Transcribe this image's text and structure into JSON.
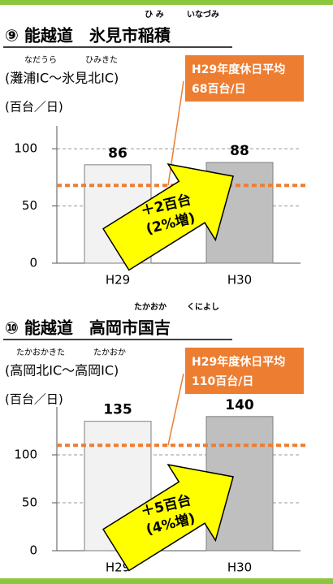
{
  "chart_data": [
    {
      "type": "bar",
      "title": "⑨ 能越道　氷見市稲積",
      "title_ruby": [
        "ひ み",
        "いなづみ"
      ],
      "subtitle": "(灘浦IC〜氷見北IC)",
      "subtitle_ruby": [
        "なだうら",
        "ひみきた"
      ],
      "unit_label": "(百台／日)",
      "categories": [
        "H29",
        "H30"
      ],
      "values": [
        86,
        88
      ],
      "colors": [
        "#f2f2f2",
        "#bfbfbf"
      ],
      "ylim": [
        0,
        120
      ],
      "yticks": [
        0,
        50,
        100
      ],
      "grid": true,
      "reference": {
        "title": "H29年度休日平均",
        "value": 68,
        "label": "68百台/日",
        "color": "#ed7d31"
      },
      "annotation": [
        "＋2百台",
        "(2%増)"
      ]
    },
    {
      "type": "bar",
      "title": "⑩ 能越道　高岡市国吉",
      "title_ruby": [
        "たかおか",
        "くによし"
      ],
      "subtitle": "(高岡北IC〜高岡IC)",
      "subtitle_ruby": [
        "たかおかきた",
        "たかおか"
      ],
      "unit_label": "(百台／日)",
      "categories": [
        "H29",
        "H30"
      ],
      "values": [
        135,
        140
      ],
      "colors": [
        "#f2f2f2",
        "#bfbfbf"
      ],
      "ylim": [
        0,
        150
      ],
      "yticks": [
        0,
        50,
        100
      ],
      "grid": true,
      "reference": {
        "title": "H29年度休日平均",
        "value": 110,
        "label": "110百台/日",
        "color": "#ed7d31"
      },
      "annotation": [
        "＋5百台",
        "(4%増)"
      ]
    }
  ]
}
